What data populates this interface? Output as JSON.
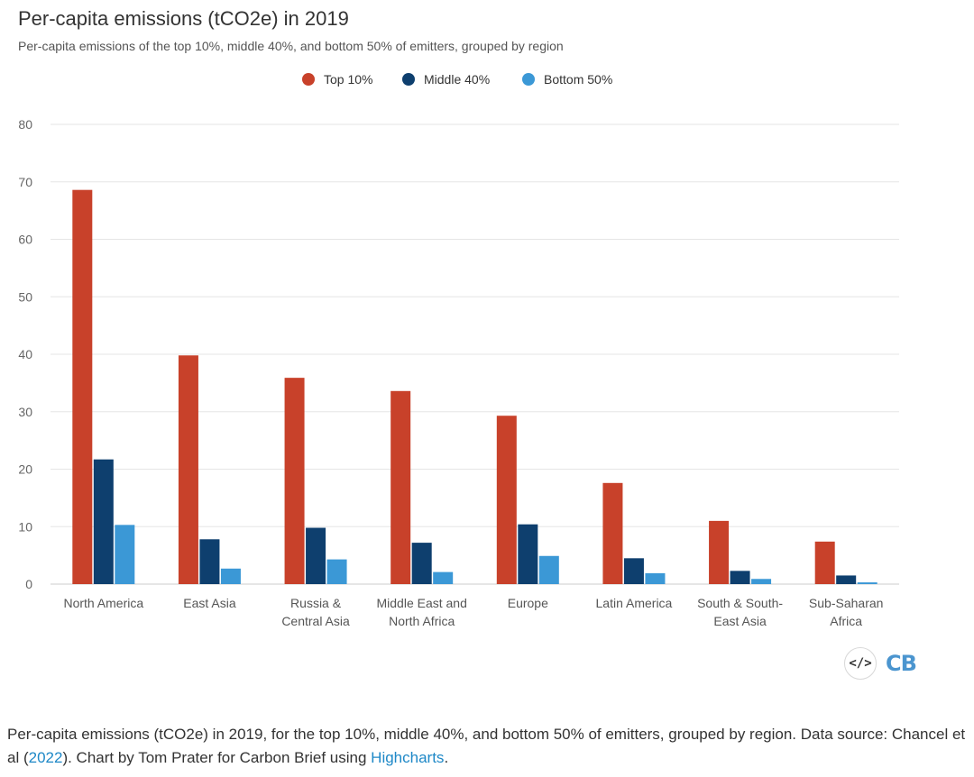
{
  "header": {
    "title": "Per-capita emissions (tCO2e) in 2019",
    "subtitle": "Per-capita emissions of the top 10%, middle 40%, and bottom 50% of emitters, grouped by region"
  },
  "legend": [
    {
      "label": "Top 10%",
      "color": "#c8412a"
    },
    {
      "label": "Middle 40%",
      "color": "#0e3f6e"
    },
    {
      "label": "Bottom 50%",
      "color": "#3b98d6"
    }
  ],
  "chart_data": {
    "type": "bar",
    "title": "Per-capita emissions (tCO2e) in 2019",
    "subtitle": "Per-capita emissions of the top 10%, middle 40%, and bottom 50% of emitters, grouped by region",
    "categories": [
      [
        "North America"
      ],
      [
        "East Asia"
      ],
      [
        "Russia &",
        "Central Asia"
      ],
      [
        "Middle East and",
        "North Africa"
      ],
      [
        "Europe"
      ],
      [
        "Latin America"
      ],
      [
        "South & South-",
        "East Asia"
      ],
      [
        "Sub-Saharan",
        "Africa"
      ]
    ],
    "series": [
      {
        "name": "Top 10%",
        "color": "#c8412a",
        "values": [
          68.6,
          39.8,
          35.9,
          33.6,
          29.3,
          17.6,
          11.0,
          7.4
        ]
      },
      {
        "name": "Middle 40%",
        "color": "#0e3f6e",
        "values": [
          21.7,
          7.8,
          9.8,
          7.2,
          10.4,
          4.5,
          2.3,
          1.5
        ]
      },
      {
        "name": "Bottom 50%",
        "color": "#3b98d6",
        "values": [
          10.3,
          2.7,
          4.3,
          2.1,
          4.9,
          1.9,
          0.9,
          0.3
        ]
      }
    ],
    "y_ticks": [
      "0",
      "10",
      "20",
      "30",
      "40",
      "50",
      "60",
      "70",
      "80"
    ],
    "ylim": [
      0,
      80
    ],
    "grid": true,
    "legend_position": "top-center"
  },
  "footer": {
    "icons": [
      "embed-code-icon",
      "carbon-brief-logo"
    ],
    "cb_logo_text": "CB",
    "embed_symbol": "</>"
  },
  "caption": {
    "text_1": "Per-capita emissions (tCO2e) in 2019, for the top 10%, middle 40%, and bottom 50% of emitters, grouped by region. Data source: Chancel et al (",
    "link_year": "2022",
    "text_2": "). Chart by Tom Prater for Carbon Brief using ",
    "link_tool": "Highcharts",
    "text_3": "."
  }
}
